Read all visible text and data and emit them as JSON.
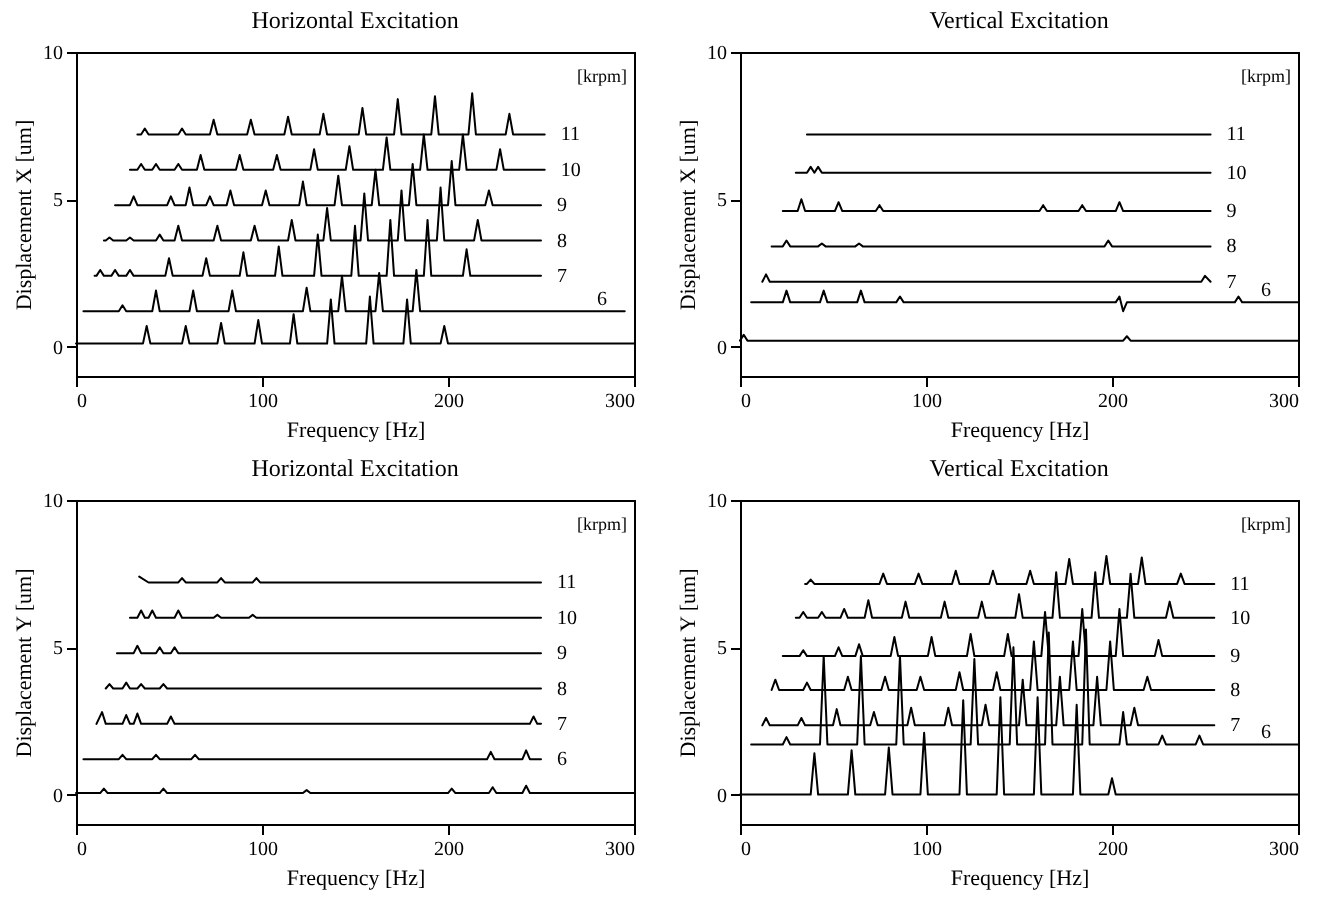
{
  "chart_data": [
    {
      "type": "line",
      "title": "Horizontal Excitation",
      "xlabel": "Frequency [Hz]",
      "ylabel": "Displacement X [um]",
      "legend_title": "[krpm]",
      "xlim": [
        0,
        300
      ],
      "xticks": [
        0,
        100,
        200,
        300
      ],
      "ylim": [
        -1,
        10
      ],
      "yticks": [
        0,
        5,
        10
      ],
      "grid": false,
      "line_style": "solid",
      "series": [
        {
          "name": "11",
          "color": "#000000",
          "x": [
            33,
            35,
            37,
            39,
            55,
            57,
            59,
            72,
            74,
            76,
            92,
            94,
            96,
            112,
            114,
            116,
            131,
            133,
            135,
            152,
            154,
            156,
            171,
            173,
            175,
            191,
            193,
            195,
            211,
            213,
            215,
            231,
            233,
            235,
            252
          ],
          "values": [
            7.2,
            7.2,
            7.4,
            7.2,
            7.2,
            7.4,
            7.2,
            7.2,
            7.7,
            7.2,
            7.2,
            7.7,
            7.2,
            7.2,
            7.8,
            7.2,
            7.2,
            7.9,
            7.2,
            7.2,
            8.1,
            7.2,
            7.2,
            8.4,
            7.2,
            7.2,
            8.5,
            7.2,
            7.2,
            8.6,
            7.2,
            7.2,
            7.9,
            7.2,
            7.2
          ]
        },
        {
          "name": "10",
          "color": "#000000",
          "x": [
            29,
            33,
            35,
            37,
            41,
            43,
            45,
            53,
            55,
            57,
            65,
            67,
            69,
            86,
            88,
            90,
            106,
            108,
            110,
            126,
            128,
            130,
            145,
            147,
            149,
            165,
            167,
            169,
            185,
            187,
            189,
            206,
            208,
            210,
            226,
            228,
            230,
            252
          ],
          "values": [
            6,
            6,
            6.2,
            6,
            6,
            6.2,
            6,
            6,
            6.2,
            6,
            6,
            6.5,
            6,
            6,
            6.5,
            6,
            6,
            6.5,
            6,
            6,
            6.7,
            6,
            6,
            6.8,
            6,
            6,
            7.1,
            6,
            6,
            7.2,
            6,
            6,
            7.2,
            6,
            6,
            6.7,
            6,
            6
          ]
        },
        {
          "name": "9",
          "color": "#000000",
          "x": [
            21,
            29,
            31,
            33,
            49,
            51,
            53,
            59,
            61,
            63,
            70,
            72,
            74,
            81,
            83,
            85,
            100,
            102,
            104,
            120,
            122,
            124,
            139,
            141,
            143,
            159,
            161,
            163,
            179,
            181,
            183,
            200,
            202,
            204,
            220,
            222,
            224,
            250
          ],
          "values": [
            4.8,
            4.8,
            5.1,
            4.8,
            4.8,
            5.1,
            4.8,
            4.8,
            5.4,
            4.8,
            4.8,
            5.1,
            4.8,
            4.8,
            5.3,
            4.8,
            4.8,
            5.3,
            4.8,
            4.8,
            5.6,
            4.8,
            4.8,
            5.8,
            4.8,
            4.8,
            6.0,
            4.8,
            4.8,
            6.2,
            4.8,
            4.8,
            6.3,
            4.8,
            4.8,
            5.3,
            4.8,
            4.8
          ]
        },
        {
          "name": "8",
          "color": "#000000",
          "x": [
            15,
            16,
            18,
            20,
            27,
            29,
            31,
            43,
            45,
            47,
            53,
            55,
            57,
            74,
            76,
            78,
            94,
            96,
            98,
            114,
            116,
            118,
            133,
            135,
            137,
            153,
            155,
            157,
            173,
            175,
            177,
            194,
            196,
            198,
            214,
            216,
            218,
            250
          ],
          "values": [
            3.6,
            3.6,
            3.7,
            3.6,
            3.6,
            3.7,
            3.6,
            3.6,
            3.8,
            3.6,
            3.6,
            4.1,
            3.6,
            3.6,
            4.1,
            3.6,
            3.6,
            4.1,
            3.6,
            3.6,
            4.3,
            3.6,
            3.6,
            4.7,
            3.6,
            3.6,
            5.2,
            3.6,
            3.6,
            5.3,
            3.6,
            3.6,
            5.4,
            3.6,
            3.6,
            4.3,
            3.6,
            3.6
          ]
        },
        {
          "name": "7",
          "color": "#000000",
          "x": [
            10,
            11,
            13,
            15,
            19,
            21,
            23,
            27,
            29,
            31,
            48,
            50,
            52,
            68,
            70,
            72,
            88,
            90,
            92,
            107,
            109,
            111,
            128,
            130,
            132,
            148,
            150,
            152,
            167,
            169,
            171,
            187,
            189,
            191,
            208,
            210,
            212,
            250
          ],
          "values": [
            2.4,
            2.4,
            2.6,
            2.4,
            2.4,
            2.6,
            2.4,
            2.4,
            2.6,
            2.4,
            2.4,
            3.0,
            2.4,
            2.4,
            3.0,
            2.4,
            2.4,
            3.2,
            2.4,
            2.4,
            3.4,
            2.4,
            2.4,
            3.8,
            2.4,
            2.4,
            4.1,
            2.4,
            2.4,
            4.3,
            2.4,
            2.4,
            4.3,
            2.4,
            2.4,
            3.3,
            2.4,
            2.4
          ]
        },
        {
          "name": "6",
          "color": "#000000",
          "x": [
            4,
            23,
            25,
            27,
            41,
            43,
            45,
            61,
            63,
            65,
            82,
            84,
            86,
            122,
            124,
            126,
            141,
            143,
            145,
            161,
            163,
            165,
            181,
            183,
            185,
            295
          ],
          "values": [
            1.2,
            1.2,
            1.4,
            1.2,
            1.2,
            1.9,
            1.2,
            1.2,
            1.9,
            1.2,
            1.2,
            1.9,
            1.2,
            1.2,
            2.0,
            1.2,
            1.2,
            2.4,
            1.2,
            1.2,
            2.5,
            1.2,
            1.2,
            2.6,
            1.2,
            1.2
          ]
        },
        {
          "color": "#000000",
          "x": [
            0,
            36,
            38,
            40,
            57,
            59,
            61,
            76,
            78,
            80,
            96,
            98,
            100,
            115,
            117,
            119,
            135,
            137,
            139,
            156,
            158,
            160,
            176,
            178,
            180,
            196,
            198,
            200,
            300
          ],
          "values": [
            0.1,
            0.1,
            0.7,
            0.1,
            0.1,
            0.7,
            0.1,
            0.1,
            0.8,
            0.1,
            0.1,
            0.9,
            0.1,
            0.1,
            1.1,
            0.1,
            0.1,
            1.6,
            0.1,
            0.1,
            1.7,
            0.1,
            0.1,
            1.6,
            0.1,
            0.1,
            0.7,
            0.1,
            0.1
          ]
        }
      ]
    },
    {
      "type": "line",
      "title": "Vertical Excitation",
      "xlabel": "Frequency [Hz]",
      "ylabel": "Displacement X [um]",
      "legend_title": "[krpm]",
      "xlim": [
        0,
        300
      ],
      "xticks": [
        0,
        100,
        200,
        300
      ],
      "ylim": [
        -1,
        10
      ],
      "yticks": [
        0,
        5,
        10
      ],
      "grid": false,
      "line_style": "solid",
      "series": [
        {
          "name": "11",
          "color": "#000000",
          "x": [
            36,
            253
          ],
          "values": [
            7.2,
            7.2
          ]
        },
        {
          "name": "10",
          "color": "#000000",
          "x": [
            30,
            36,
            38,
            40,
            42,
            44,
            253
          ],
          "values": [
            5.9,
            5.9,
            6.1,
            5.9,
            6.1,
            5.9,
            5.9
          ]
        },
        {
          "name": "9",
          "color": "#000000",
          "x": [
            23,
            31,
            33,
            35,
            51,
            53,
            55,
            73,
            75,
            77,
            161,
            163,
            165,
            182,
            184,
            186,
            202,
            204,
            206,
            253
          ],
          "values": [
            4.6,
            4.6,
            5.0,
            4.6,
            4.6,
            4.9,
            4.6,
            4.6,
            4.8,
            4.6,
            4.6,
            4.8,
            4.6,
            4.6,
            4.8,
            4.6,
            4.6,
            4.9,
            4.6,
            4.6
          ]
        },
        {
          "name": "8",
          "color": "#000000",
          "x": [
            17,
            23,
            25,
            27,
            42,
            44,
            46,
            62,
            64,
            66,
            196,
            198,
            200,
            253
          ],
          "values": [
            3.4,
            3.4,
            3.6,
            3.4,
            3.4,
            3.5,
            3.4,
            3.4,
            3.5,
            3.4,
            3.4,
            3.6,
            3.4,
            3.4
          ]
        },
        {
          "name": "7",
          "color": "#000000",
          "x": [
            12,
            14,
            16,
            248,
            250,
            253
          ],
          "values": [
            2.2,
            2.45,
            2.2,
            2.2,
            2.4,
            2.2
          ]
        },
        {
          "name": "6",
          "color": "#000000",
          "x": [
            6,
            23,
            25,
            27,
            43,
            45,
            47,
            63,
            65,
            67,
            84,
            86,
            88,
            202,
            204,
            206,
            208,
            266,
            268,
            270,
            300
          ],
          "values": [
            1.5,
            1.5,
            1.9,
            1.5,
            1.5,
            1.9,
            1.5,
            1.5,
            1.9,
            1.5,
            1.5,
            1.7,
            1.5,
            1.5,
            1.7,
            1.2,
            1.5,
            1.5,
            1.7,
            1.5,
            1.5
          ]
        },
        {
          "color": "#000000",
          "x": [
            0,
            2,
            4,
            206,
            208,
            210,
            300
          ],
          "values": [
            0.2,
            0.4,
            0.2,
            0.2,
            0.35,
            0.2,
            0.2
          ]
        }
      ]
    },
    {
      "type": "line",
      "title": "Horizontal Excitation",
      "xlabel": "Frequency [Hz]",
      "ylabel": "Displacement Y [um]",
      "legend_title": "[krpm]",
      "xlim": [
        0,
        300
      ],
      "xticks": [
        0,
        100,
        200,
        300
      ],
      "ylim": [
        -1,
        10
      ],
      "yticks": [
        0,
        5,
        10
      ],
      "grid": false,
      "line_style": "solid",
      "series": [
        {
          "name": "11",
          "color": "#000000",
          "x": [
            34,
            39,
            55,
            57,
            59,
            76,
            78,
            80,
            95,
            97,
            99,
            250
          ],
          "values": [
            7.4,
            7.2,
            7.2,
            7.35,
            7.2,
            7.2,
            7.35,
            7.2,
            7.2,
            7.35,
            7.2,
            7.2
          ]
        },
        {
          "name": "10",
          "color": "#000000",
          "x": [
            29,
            33,
            35,
            37,
            39,
            41,
            43,
            53,
            55,
            57,
            74,
            76,
            78,
            93,
            95,
            97,
            250
          ],
          "values": [
            6,
            6,
            6.25,
            6,
            6,
            6.25,
            6,
            6,
            6.25,
            6,
            6,
            6.1,
            6,
            6,
            6.1,
            6,
            6
          ]
        },
        {
          "name": "9",
          "color": "#000000",
          "x": [
            22,
            31,
            33,
            35,
            43,
            45,
            47,
            51,
            53,
            55,
            250
          ],
          "values": [
            4.8,
            4.8,
            5.05,
            4.8,
            4.8,
            5.0,
            4.8,
            4.8,
            5.0,
            4.8,
            4.8
          ]
        },
        {
          "name": "8",
          "color": "#000000",
          "x": [
            16,
            18,
            20,
            25,
            27,
            29,
            33,
            35,
            37,
            45,
            47,
            49,
            250
          ],
          "values": [
            3.6,
            3.75,
            3.6,
            3.6,
            3.8,
            3.6,
            3.6,
            3.75,
            3.6,
            3.6,
            3.75,
            3.6,
            3.6
          ]
        },
        {
          "name": "7",
          "color": "#000000",
          "x": [
            11,
            14,
            16,
            25,
            27,
            29,
            31,
            33,
            35,
            49,
            51,
            53,
            244,
            246,
            248,
            250
          ],
          "values": [
            2.4,
            2.8,
            2.4,
            2.4,
            2.7,
            2.4,
            2.4,
            2.75,
            2.4,
            2.4,
            2.65,
            2.4,
            2.4,
            2.65,
            2.4,
            2.4
          ]
        },
        {
          "name": "6",
          "color": "#000000",
          "x": [
            4,
            23,
            25,
            27,
            41,
            43,
            45,
            62,
            64,
            66,
            221,
            223,
            225,
            240,
            242,
            244,
            250
          ],
          "values": [
            1.2,
            1.2,
            1.35,
            1.2,
            1.2,
            1.35,
            1.2,
            1.2,
            1.35,
            1.2,
            1.2,
            1.45,
            1.2,
            1.2,
            1.5,
            1.2,
            1.2
          ]
        },
        {
          "color": "#000000",
          "x": [
            0,
            13,
            15,
            17,
            45,
            47,
            49,
            122,
            124,
            126,
            200,
            202,
            204,
            222,
            224,
            226,
            240,
            242,
            244,
            300
          ],
          "values": [
            0.05,
            0.05,
            0.2,
            0.05,
            0.05,
            0.2,
            0.05,
            0.05,
            0.15,
            0.05,
            0.05,
            0.2,
            0.05,
            0.05,
            0.25,
            0.05,
            0.05,
            0.3,
            0.05,
            0.05
          ]
        }
      ]
    },
    {
      "type": "line",
      "title": "Vertical Excitation",
      "xlabel": "Frequency [Hz]",
      "ylabel": "Displacement Y [um]",
      "legend_title": "[krpm]",
      "xlim": [
        0,
        300
      ],
      "xticks": [
        0,
        100,
        200,
        300
      ],
      "ylim": [
        -1,
        10
      ],
      "yticks": [
        0,
        5,
        10
      ],
      "grid": false,
      "line_style": "solid",
      "series": [
        {
          "name": "11",
          "color": "#000000",
          "x": [
            35,
            36,
            38,
            40,
            75,
            77,
            79,
            94,
            96,
            98,
            114,
            116,
            118,
            134,
            136,
            138,
            154,
            156,
            158,
            175,
            177,
            179,
            195,
            197,
            199,
            214,
            216,
            218,
            235,
            237,
            239,
            255
          ],
          "values": [
            7.15,
            7.15,
            7.3,
            7.15,
            7.15,
            7.5,
            7.15,
            7.15,
            7.5,
            7.15,
            7.15,
            7.6,
            7.15,
            7.15,
            7.6,
            7.15,
            7.15,
            7.6,
            7.15,
            7.15,
            8.0,
            7.15,
            7.15,
            8.1,
            7.15,
            7.15,
            8.05,
            7.15,
            7.15,
            7.5,
            7.15,
            7.15
          ]
        },
        {
          "name": "10",
          "color": "#000000",
          "x": [
            30,
            32,
            34,
            36,
            42,
            44,
            46,
            54,
            56,
            58,
            67,
            69,
            71,
            87,
            89,
            91,
            108,
            110,
            112,
            128,
            130,
            132,
            148,
            150,
            152,
            168,
            170,
            172,
            189,
            191,
            193,
            208,
            210,
            212,
            229,
            231,
            233,
            255
          ],
          "values": [
            6,
            6,
            6.2,
            6,
            6,
            6.2,
            6,
            6,
            6.3,
            6,
            6,
            6.6,
            6,
            6,
            6.55,
            6,
            6,
            6.55,
            6,
            6,
            6.55,
            6,
            6,
            6.8,
            6,
            6,
            7.55,
            6,
            6,
            7.55,
            6,
            6,
            7.5,
            6,
            6,
            6.55,
            6,
            6
          ]
        },
        {
          "name": "9",
          "color": "#000000",
          "x": [
            23,
            32,
            34,
            36,
            51,
            53,
            55,
            62,
            64,
            66,
            81,
            83,
            85,
            101,
            103,
            105,
            122,
            124,
            126,
            142,
            144,
            146,
            162,
            164,
            166,
            182,
            184,
            186,
            202,
            204,
            206,
            223,
            225,
            227,
            255
          ],
          "values": [
            4.7,
            4.7,
            4.9,
            4.7,
            4.7,
            5.0,
            4.7,
            4.7,
            5.1,
            4.7,
            4.7,
            5.35,
            4.7,
            4.7,
            5.35,
            4.7,
            4.7,
            5.45,
            4.7,
            4.7,
            5.45,
            4.7,
            4.7,
            6.2,
            4.7,
            4.7,
            6.3,
            4.7,
            4.7,
            6.3,
            4.7,
            4.7,
            5.25,
            4.7,
            4.7
          ]
        },
        {
          "name": "8",
          "color": "#000000",
          "x": [
            17,
            19,
            21,
            34,
            36,
            38,
            56,
            58,
            60,
            76,
            78,
            80,
            95,
            97,
            99,
            116,
            118,
            120,
            136,
            138,
            140,
            156,
            158,
            160,
            177,
            179,
            181,
            197,
            199,
            201,
            217,
            219,
            221,
            255
          ],
          "values": [
            3.55,
            3.9,
            3.55,
            3.55,
            3.8,
            3.55,
            3.55,
            4.0,
            3.55,
            3.55,
            4.0,
            3.55,
            3.55,
            4.0,
            3.55,
            3.55,
            4.15,
            3.55,
            3.55,
            4.15,
            3.55,
            3.55,
            5.2,
            3.55,
            3.55,
            5.2,
            3.55,
            3.55,
            5.2,
            3.55,
            3.55,
            4.0,
            3.55,
            3.55
          ]
        },
        {
          "name": "7",
          "color": "#000000",
          "x": [
            12,
            14,
            16,
            31,
            33,
            35,
            50,
            52,
            54,
            70,
            72,
            74,
            90,
            92,
            94,
            110,
            112,
            114,
            130,
            132,
            134,
            150,
            152,
            154,
            170,
            172,
            174,
            190,
            192,
            194,
            210,
            212,
            214,
            255
          ],
          "values": [
            2.35,
            2.6,
            2.35,
            2.35,
            2.6,
            2.35,
            2.35,
            2.9,
            2.35,
            2.35,
            2.8,
            2.35,
            2.35,
            2.95,
            2.35,
            2.35,
            2.95,
            2.35,
            2.35,
            3.05,
            2.35,
            2.35,
            3.9,
            2.35,
            2.35,
            4.0,
            2.35,
            2.35,
            4.0,
            2.35,
            2.35,
            2.95,
            2.35,
            2.35
          ]
        },
        {
          "name": "6",
          "color": "#000000",
          "x": [
            6,
            23,
            25,
            27,
            43,
            45,
            47,
            63,
            65,
            67,
            84,
            86,
            88,
            124,
            126,
            128,
            145,
            147,
            149,
            164,
            166,
            168,
            184,
            186,
            188,
            204,
            206,
            208,
            225,
            227,
            229,
            245,
            247,
            249,
            300
          ],
          "values": [
            1.7,
            1.7,
            1.95,
            1.7,
            1.7,
            4.7,
            1.7,
            1.7,
            4.7,
            1.7,
            1.7,
            4.7,
            1.7,
            1.7,
            4.6,
            1.7,
            1.7,
            5.0,
            1.7,
            1.7,
            5.5,
            1.7,
            1.7,
            5.6,
            1.7,
            1.7,
            2.8,
            1.7,
            1.7,
            2.0,
            1.7,
            1.7,
            2.0,
            1.7,
            1.7
          ]
        },
        {
          "color": "#000000",
          "x": [
            0,
            38,
            40,
            42,
            58,
            60,
            62,
            78,
            80,
            82,
            97,
            99,
            101,
            118,
            120,
            122,
            138,
            140,
            142,
            158,
            160,
            162,
            179,
            181,
            183,
            198,
            200,
            202,
            300
          ],
          "values": [
            0,
            0,
            1.4,
            0,
            0,
            1.5,
            0,
            0,
            1.6,
            0,
            0,
            2.1,
            0,
            0,
            3.2,
            0,
            0,
            3.3,
            0,
            0,
            3.3,
            0,
            0,
            3.05,
            0,
            0,
            0.55,
            0,
            0
          ]
        }
      ]
    }
  ]
}
